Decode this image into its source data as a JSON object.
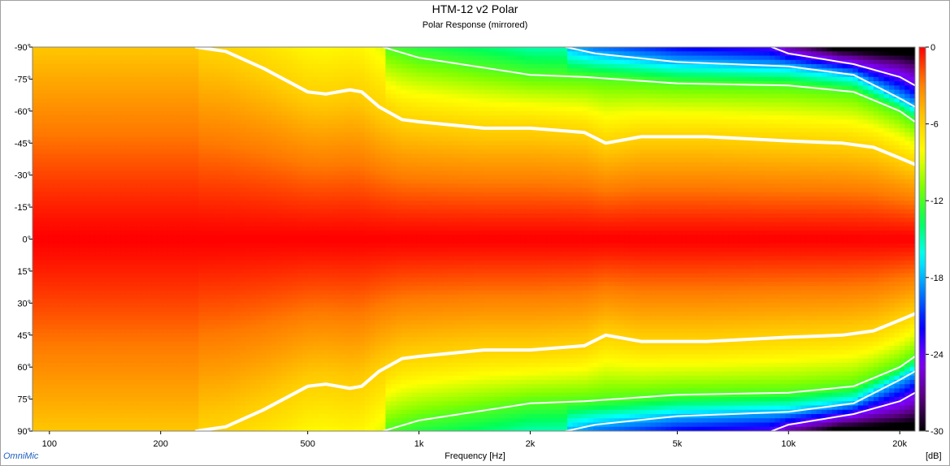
{
  "chart_data": {
    "type": "heatmap",
    "title": "HTM-12 v2 Polar",
    "subtitle": "Polar Response (mirrored)",
    "xlabel": "Frequency [Hz]",
    "ylabel": "",
    "x_scale": "log",
    "xlim": [
      90,
      22000
    ],
    "ylim": [
      -90,
      90
    ],
    "x_ticks": [
      100,
      200,
      500,
      1000,
      2000,
      5000,
      10000,
      20000
    ],
    "x_tick_labels": [
      "100",
      "200",
      "500",
      "1k",
      "2k",
      "5k",
      "10k",
      "20k"
    ],
    "y_ticks": [
      -90,
      -75,
      -60,
      -45,
      -30,
      -15,
      0,
      15,
      30,
      45,
      60,
      75,
      90
    ],
    "y_tick_labels": [
      "-90°",
      "-75°",
      "-60°",
      "-45°",
      "-30°",
      "-15°",
      "0°",
      "15°",
      "30°",
      "45°",
      "60°",
      "75°",
      "90°"
    ],
    "colorbar": {
      "unit": "[dB]",
      "range": [
        -30,
        0
      ],
      "ticks": [
        0,
        -6,
        -12,
        -18,
        -24,
        -30
      ],
      "tick_labels": [
        "0",
        "-6",
        "-12",
        "-18",
        "-24",
        "-30"
      ]
    },
    "contour_levels_db": [
      -6,
      -12,
      -18,
      -24
    ],
    "contours": [
      {
        "level": -6,
        "freq": [
          250,
          300,
          380,
          500,
          560,
          650,
          700,
          780,
          900,
          1000,
          1500,
          2000,
          2800,
          3200,
          4000,
          6000,
          10000,
          14000,
          17000,
          20000,
          22000
        ],
        "angle": [
          90,
          88,
          80,
          69,
          68,
          70,
          69,
          62,
          56,
          55,
          52,
          52,
          50,
          45,
          48,
          48,
          46,
          45,
          43,
          38,
          35
        ]
      },
      {
        "level": -12,
        "freq": [
          800,
          1000,
          2000,
          2800,
          5000,
          10000,
          15000,
          20000,
          22000
        ],
        "angle": [
          90,
          85,
          77,
          76,
          73,
          72,
          69,
          60,
          55
        ]
      },
      {
        "level": -18,
        "freq": [
          2500,
          3000,
          5000,
          10000,
          15000,
          20000,
          22000
        ],
        "angle": [
          90,
          87,
          83,
          81,
          77,
          66,
          62
        ]
      },
      {
        "level": -24,
        "freq": [
          9000,
          10000,
          15000,
          20000,
          22000
        ],
        "angle": [
          90,
          87,
          82,
          76,
          72
        ]
      }
    ]
  },
  "brand": "OmniMic",
  "colors": {
    "colormap": [
      "#ff0000",
      "#ff7a00",
      "#ffc800",
      "#ffff00",
      "#80ff00",
      "#00ff55",
      "#00ffff",
      "#0080ff",
      "#0000ff",
      "#8000ff",
      "#5a0080",
      "#000000"
    ],
    "contour_line": "#ffffff",
    "frame": "#a0a0a0",
    "brand_text": "#1f5fbf"
  }
}
